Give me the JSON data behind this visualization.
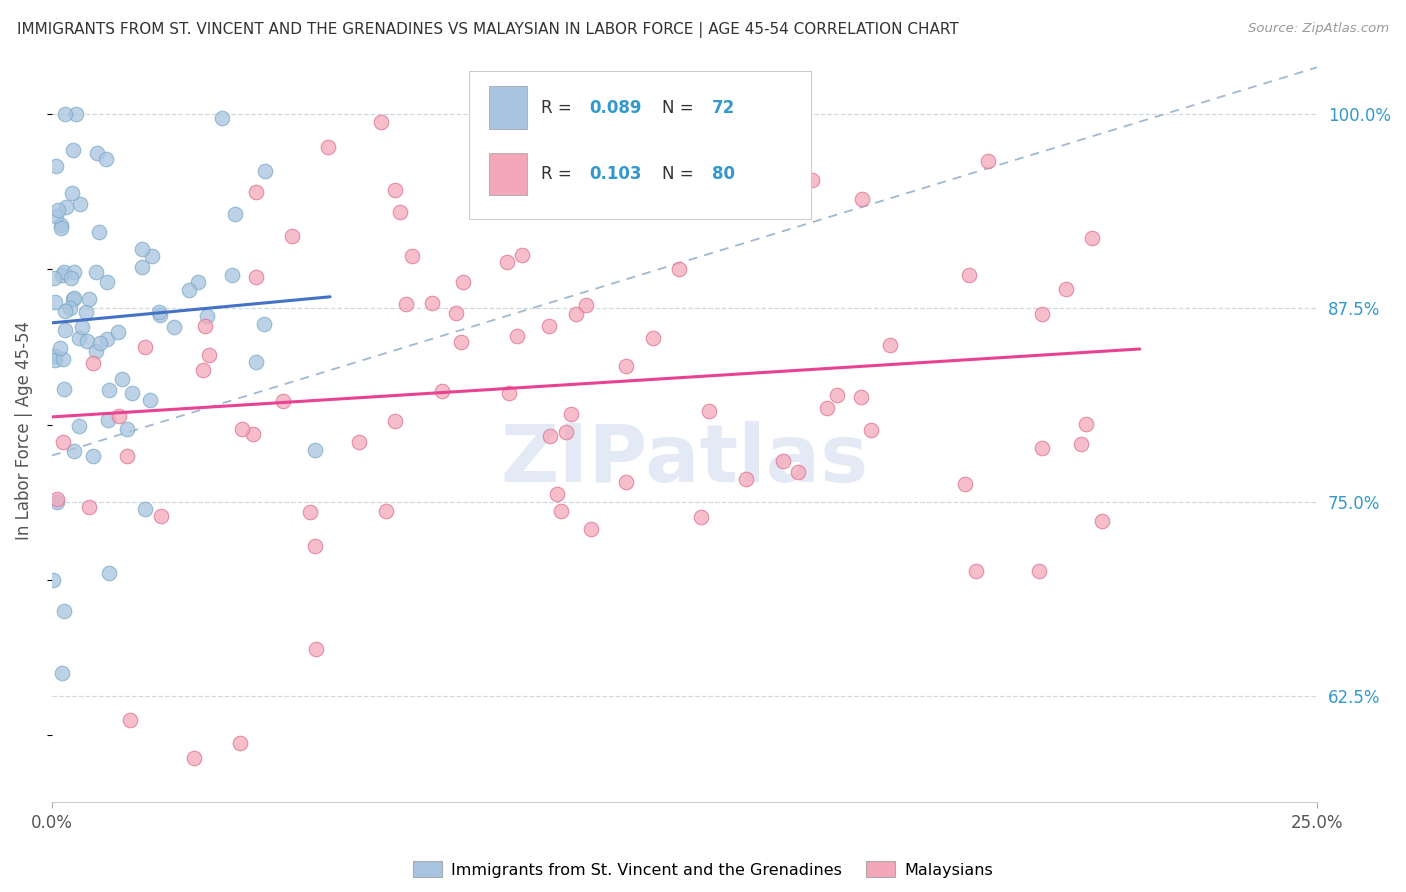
{
  "title": "IMMIGRANTS FROM ST. VINCENT AND THE GRENADINES VS MALAYSIAN IN LABOR FORCE | AGE 45-54 CORRELATION CHART",
  "source": "Source: ZipAtlas.com",
  "ylabel": "In Labor Force | Age 45-54",
  "legend_label_blue": "Immigrants from St. Vincent and the Grenadines",
  "legend_label_pink": "Malaysians",
  "blue_color": "#a8c4e0",
  "blue_edge": "#7aaac8",
  "pink_color": "#f4a7b9",
  "pink_edge": "#e07090",
  "trend_blue": "#4472c4",
  "trend_pink": "#e84393",
  "dashed_color": "#a0b8d0",
  "xmin": 0.0,
  "xmax": 0.25,
  "ymin": 0.557,
  "ymax": 1.035,
  "yticks": [
    0.625,
    0.75,
    0.875,
    1.0
  ],
  "ytick_labels": [
    "62.5%",
    "75.0%",
    "87.5%",
    "100.0%"
  ],
  "xtick_labels": [
    "0.0%",
    "25.0%"
  ],
  "watermark": "ZIPatlas",
  "grid_color": "#d0d8e0",
  "grid_style": "--",
  "bg_color": "#ffffff",
  "legend_blue_R": "0.089",
  "legend_blue_N": "72",
  "legend_pink_R": "0.103",
  "legend_pink_N": "80",
  "R_label_color": "#333333",
  "N_value_color": "#3399cc",
  "R_value_color": "#3399cc"
}
